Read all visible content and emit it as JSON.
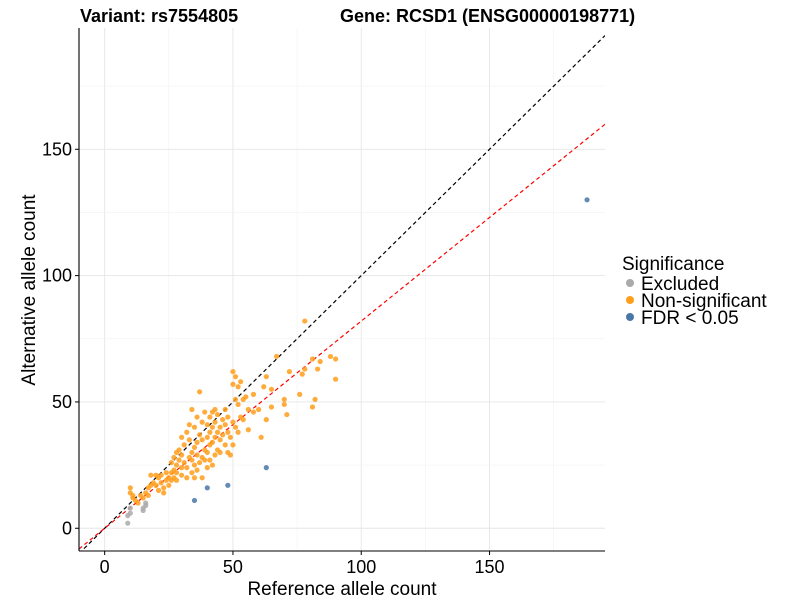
{
  "chart_data": {
    "type": "scatter",
    "title_left": "Variant: rs7554805",
    "title_right": "Gene: RCSD1 (ENSG00000198771)",
    "xlabel": "Reference allele count",
    "ylabel": "Alternative allele count",
    "xlim": [
      -10,
      195
    ],
    "ylim": [
      -9,
      198
    ],
    "x_ticks": [
      0,
      50,
      100,
      150
    ],
    "y_ticks": [
      0,
      50,
      100,
      150
    ],
    "grid": true,
    "legend": {
      "title": "Significance",
      "position": "right",
      "entries": [
        {
          "name": "Excluded",
          "color": "#aaaaaa"
        },
        {
          "name": "Non-significant",
          "color": "#ff9e1b"
        },
        {
          "name": "FDR < 0.05",
          "color": "#4a76a8"
        }
      ]
    },
    "reference_lines": [
      {
        "slope": 1.0,
        "intercept": 0,
        "color": "#000000",
        "style": "dashed"
      },
      {
        "slope": 0.82,
        "intercept": 0,
        "color": "#ff0000",
        "style": "dashed"
      }
    ],
    "series": [
      {
        "name": "Excluded",
        "color": "#aaaaaa",
        "points": [
          [
            9,
            2
          ],
          [
            9,
            5
          ],
          [
            10,
            6
          ],
          [
            10,
            8
          ],
          [
            15,
            7
          ],
          [
            15,
            8
          ],
          [
            16,
            9
          ],
          [
            16,
            10
          ]
        ]
      },
      {
        "name": "Non-significant",
        "color": "#ff9e1b",
        "points": [
          [
            10,
            16
          ],
          [
            10,
            14
          ],
          [
            11,
            12
          ],
          [
            11,
            13
          ],
          [
            12,
            11
          ],
          [
            13,
            10
          ],
          [
            14,
            13
          ],
          [
            15,
            12
          ],
          [
            16,
            14
          ],
          [
            17,
            13
          ],
          [
            17,
            16
          ],
          [
            18,
            17
          ],
          [
            18,
            21
          ],
          [
            19,
            18
          ],
          [
            20,
            17
          ],
          [
            20,
            21
          ],
          [
            21,
            15
          ],
          [
            21,
            20
          ],
          [
            22,
            18
          ],
          [
            22,
            21
          ],
          [
            23,
            16
          ],
          [
            23,
            14
          ],
          [
            24,
            19
          ],
          [
            24,
            22
          ],
          [
            25,
            17
          ],
          [
            25,
            20
          ],
          [
            26,
            19
          ],
          [
            26,
            22
          ],
          [
            26,
            26
          ],
          [
            27,
            20
          ],
          [
            27,
            23
          ],
          [
            27,
            28
          ],
          [
            28,
            19
          ],
          [
            28,
            22
          ],
          [
            28,
            25
          ],
          [
            28,
            30
          ],
          [
            29,
            31
          ],
          [
            29,
            27
          ],
          [
            30,
            21
          ],
          [
            30,
            24
          ],
          [
            30,
            29
          ],
          [
            30,
            36
          ],
          [
            31,
            26
          ],
          [
            31,
            33
          ],
          [
            32,
            24
          ],
          [
            32,
            38
          ],
          [
            32,
            20
          ],
          [
            33,
            28
          ],
          [
            33,
            35
          ],
          [
            33,
            41
          ],
          [
            34,
            22
          ],
          [
            34,
            27
          ],
          [
            34,
            30
          ],
          [
            34,
            47
          ],
          [
            35,
            25
          ],
          [
            35,
            32
          ],
          [
            35,
            40
          ],
          [
            35,
            20
          ],
          [
            36,
            23
          ],
          [
            36,
            29
          ],
          [
            36,
            34
          ],
          [
            36,
            44
          ],
          [
            37,
            26
          ],
          [
            37,
            37
          ],
          [
            37,
            54
          ],
          [
            38,
            20
          ],
          [
            38,
            28
          ],
          [
            38,
            35
          ],
          [
            38,
            42
          ],
          [
            39,
            27
          ],
          [
            39,
            31
          ],
          [
            39,
            46
          ],
          [
            40,
            24
          ],
          [
            40,
            30
          ],
          [
            40,
            36
          ],
          [
            40,
            41
          ],
          [
            41,
            27
          ],
          [
            41,
            33
          ],
          [
            41,
            38
          ],
          [
            41,
            44
          ],
          [
            42,
            25
          ],
          [
            42,
            34
          ],
          [
            42,
            40
          ],
          [
            42,
            46
          ],
          [
            43,
            29
          ],
          [
            43,
            36
          ],
          [
            43,
            42
          ],
          [
            43,
            47
          ],
          [
            44,
            31
          ],
          [
            44,
            38
          ],
          [
            44,
            45
          ],
          [
            45,
            30
          ],
          [
            45,
            35
          ],
          [
            45,
            40
          ],
          [
            46,
            37
          ],
          [
            46,
            43
          ],
          [
            47,
            33
          ],
          [
            47,
            41
          ],
          [
            47,
            47
          ],
          [
            48,
            30
          ],
          [
            48,
            38
          ],
          [
            48,
            44
          ],
          [
            49,
            36
          ],
          [
            49,
            29
          ],
          [
            50,
            33
          ],
          [
            50,
            42
          ],
          [
            50,
            57
          ],
          [
            50,
            62
          ],
          [
            51,
            40
          ],
          [
            51,
            51
          ],
          [
            51,
            60
          ],
          [
            52,
            38
          ],
          [
            52,
            49
          ],
          [
            52,
            56
          ],
          [
            53,
            44
          ],
          [
            53,
            58
          ],
          [
            54,
            43
          ],
          [
            54,
            51
          ],
          [
            55,
            52
          ],
          [
            56,
            39
          ],
          [
            56,
            47
          ],
          [
            58,
            46
          ],
          [
            58,
            53
          ],
          [
            60,
            47
          ],
          [
            61,
            36
          ],
          [
            62,
            56
          ],
          [
            63,
            43
          ],
          [
            63,
            60
          ],
          [
            65,
            48
          ],
          [
            65,
            55
          ],
          [
            67,
            68
          ],
          [
            70,
            51
          ],
          [
            70,
            49
          ],
          [
            71,
            45
          ],
          [
            72,
            62
          ],
          [
            76,
            53
          ],
          [
            77,
            61
          ],
          [
            78,
            63
          ],
          [
            78,
            82
          ],
          [
            81,
            48
          ],
          [
            81,
            67
          ],
          [
            82,
            51
          ],
          [
            83,
            63
          ],
          [
            84,
            66
          ],
          [
            88,
            68
          ],
          [
            90,
            59
          ],
          [
            90,
            67
          ]
        ]
      },
      {
        "name": "FDR < 0.05",
        "color": "#4a76a8",
        "points": [
          [
            35,
            11
          ],
          [
            40,
            16
          ],
          [
            48,
            17
          ],
          [
            63,
            24
          ],
          [
            188,
            130
          ]
        ]
      }
    ]
  }
}
